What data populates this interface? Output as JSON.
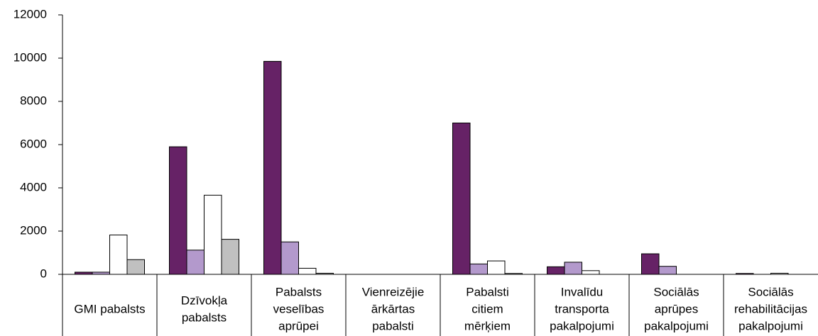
{
  "chart_data": {
    "type": "bar",
    "categories": [
      [
        "GMI pabalsts"
      ],
      [
        "Dzīvokļa",
        "pabalsts"
      ],
      [
        "Pabalsts",
        "veselības",
        "aprūpei"
      ],
      [
        "Vienreizējie",
        "ārkārtas",
        "pabalsti"
      ],
      [
        "Pabalsti",
        "citiem",
        "mērķiem"
      ],
      [
        "Invalīdu",
        "transporta",
        "pakalpojumi"
      ],
      [
        "Sociālās",
        "aprūpes",
        "pakalpojumi"
      ],
      [
        "Sociālās",
        "rehabilitācijas",
        "pakalpojumi"
      ]
    ],
    "series": [
      {
        "color": "#662266",
        "values": [
          100,
          5900,
          9850,
          0,
          7000,
          350,
          950,
          40
        ]
      },
      {
        "color": "#b399cc",
        "values": [
          100,
          1120,
          1500,
          0,
          480,
          560,
          370,
          0
        ]
      },
      {
        "color": "#ffffff",
        "values": [
          1820,
          3660,
          280,
          0,
          620,
          170,
          0,
          50
        ]
      },
      {
        "color": "#c0c0c0",
        "values": [
          680,
          1620,
          50,
          0,
          40,
          0,
          0,
          0
        ]
      }
    ],
    "ylim": [
      0,
      12000
    ],
    "yticks": [
      0,
      2000,
      4000,
      6000,
      8000,
      10000,
      12000
    ],
    "grid": false
  }
}
